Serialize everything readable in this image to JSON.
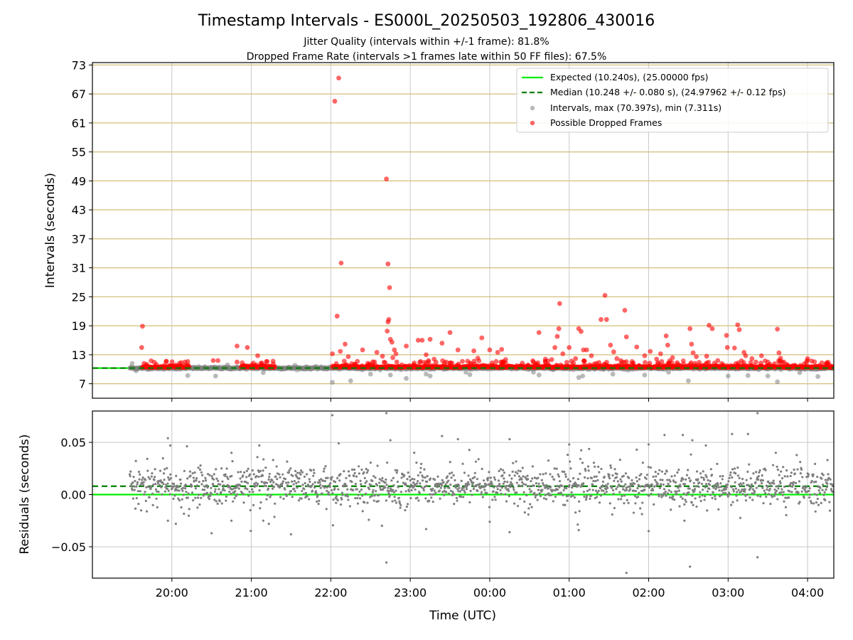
{
  "chart_data": {
    "type": "scatter",
    "title": "Timestamp Intervals - ES000L_20250503_192806_430016",
    "subtitle_lines": [
      "Jitter Quality (intervals within +/-1 frame): 81.8%",
      "Dropped Frame Rate (intervals >1 frames late within 50 FF files): 67.5%"
    ],
    "xlabel": "Time (UTC)",
    "x_ticks": [
      "20:00",
      "21:00",
      "22:00",
      "23:00",
      "00:00",
      "01:00",
      "02:00",
      "03:00",
      "04:00"
    ],
    "x_range_hours": [
      -1.0,
      8.33
    ],
    "x_data_range_hours": [
      -0.53,
      8.33
    ],
    "colors": {
      "expected": "#00ee00",
      "median": "#007f00",
      "gray_points": "#7f7f7f",
      "red_points": "#ff0000",
      "grid_main": "#d4bf7a",
      "grid_minor": "#c8c8c8"
    },
    "top": {
      "ylabel": "Intervals (seconds)",
      "y_ticks": [
        "7",
        "13",
        "19",
        "25",
        "31",
        "37",
        "43",
        "49",
        "55",
        "61",
        "67",
        "73"
      ],
      "ylim": [
        4,
        73.5
      ],
      "expected": 10.24,
      "median": 10.248,
      "legend": {
        "position": "top-right",
        "expected": "Expected (10.240s), (25.00000 fps)",
        "median": "Median (10.248 +/- 0.080 s), (24.97962 +/- 0.12 fps)",
        "intervals": "Intervals, max (70.397s), min (7.311s)",
        "dropped": "Possible Dropped Frames"
      },
      "red_clusters": [
        [
          -0.37,
          0.22
        ],
        [
          0.55,
          0.15
        ],
        [
          0.87,
          1.3
        ],
        [
          2.02,
          6.93
        ],
        [
          6.93,
          7.6
        ],
        [
          7.62,
          8.33
        ]
      ],
      "outliers_red": [
        [
          -0.37,
          18.9
        ],
        [
          -0.38,
          14.5
        ],
        [
          -0.35,
          11.2
        ],
        [
          0.2,
          11.6
        ],
        [
          0.52,
          11.8
        ],
        [
          0.58,
          11.8
        ],
        [
          0.82,
          14.8
        ],
        [
          0.82,
          11.5
        ],
        [
          0.95,
          14.5
        ],
        [
          1.08,
          12.8
        ],
        [
          1.12,
          11.2
        ],
        [
          1.2,
          11.6
        ],
        [
          2.02,
          13.2
        ],
        [
          2.05,
          65.5
        ],
        [
          2.1,
          70.3
        ],
        [
          2.08,
          21.0
        ],
        [
          2.13,
          32.0
        ],
        [
          2.18,
          15.2
        ],
        [
          2.12,
          13.7
        ],
        [
          2.22,
          12.6
        ],
        [
          2.3,
          11.0
        ],
        [
          2.4,
          14.0
        ],
        [
          2.55,
          11.5
        ],
        [
          2.58,
          13.5
        ],
        [
          2.65,
          12.7
        ],
        [
          2.7,
          49.4
        ],
        [
          2.72,
          31.8
        ],
        [
          2.74,
          26.9
        ],
        [
          2.73,
          20.3
        ],
        [
          2.72,
          19.8
        ],
        [
          2.71,
          17.9
        ],
        [
          2.75,
          16.2
        ],
        [
          2.77,
          15.6
        ],
        [
          2.8,
          14.0
        ],
        [
          2.82,
          13.2
        ],
        [
          2.78,
          12.4
        ],
        [
          2.83,
          11.5
        ],
        [
          2.95,
          14.8
        ],
        [
          3.05,
          11.3
        ],
        [
          3.1,
          16.0
        ],
        [
          3.15,
          16.0
        ],
        [
          3.2,
          13.0
        ],
        [
          3.25,
          16.2
        ],
        [
          3.3,
          12.1
        ],
        [
          3.4,
          15.4
        ],
        [
          3.5,
          17.6
        ],
        [
          3.6,
          14.0
        ],
        [
          3.75,
          11.3
        ],
        [
          3.8,
          13.8
        ],
        [
          3.85,
          12.3
        ],
        [
          3.9,
          16.5
        ],
        [
          4.0,
          14.0
        ],
        [
          4.1,
          13.5
        ],
        [
          4.15,
          14.1
        ],
        [
          4.2,
          12.0
        ],
        [
          4.55,
          11.5
        ],
        [
          4.62,
          17.6
        ],
        [
          4.7,
          12.1
        ],
        [
          4.78,
          12.0
        ],
        [
          4.82,
          14.5
        ],
        [
          4.85,
          16.8
        ],
        [
          4.87,
          18.4
        ],
        [
          4.88,
          23.6
        ],
        [
          4.92,
          13.2
        ],
        [
          5.0,
          14.5
        ],
        [
          5.08,
          12.2
        ],
        [
          5.12,
          18.4
        ],
        [
          5.15,
          17.8
        ],
        [
          5.18,
          14.0
        ],
        [
          5.22,
          14.0
        ],
        [
          5.28,
          12.8
        ],
        [
          5.4,
          20.3
        ],
        [
          5.45,
          25.3
        ],
        [
          5.47,
          20.3
        ],
        [
          5.52,
          15.0
        ],
        [
          5.56,
          13.6
        ],
        [
          5.6,
          12.2
        ],
        [
          5.65,
          11.8
        ],
        [
          5.7,
          22.2
        ],
        [
          5.72,
          16.7
        ],
        [
          5.85,
          14.6
        ],
        [
          5.95,
          12.8
        ],
        [
          6.02,
          13.7
        ],
        [
          6.1,
          12.1
        ],
        [
          6.15,
          13.2
        ],
        [
          6.22,
          16.9
        ],
        [
          6.24,
          15.0
        ],
        [
          6.3,
          12.4
        ],
        [
          6.52,
          18.4
        ],
        [
          6.54,
          15.2
        ],
        [
          6.56,
          13.4
        ],
        [
          6.6,
          12.6
        ],
        [
          6.73,
          12.7
        ],
        [
          6.76,
          19.1
        ],
        [
          6.8,
          18.4
        ],
        [
          6.87,
          11.8
        ],
        [
          6.98,
          17.0
        ],
        [
          6.99,
          14.5
        ],
        [
          7.08,
          14.4
        ],
        [
          7.12,
          19.2
        ],
        [
          7.14,
          18.2
        ],
        [
          7.2,
          13.5
        ],
        [
          7.22,
          12.8
        ],
        [
          7.3,
          12.2
        ],
        [
          7.35,
          11.5
        ],
        [
          7.42,
          12.8
        ],
        [
          7.5,
          11.5
        ],
        [
          7.62,
          18.3
        ],
        [
          7.64,
          13.4
        ],
        [
          7.66,
          12.3
        ],
        [
          7.7,
          11.5
        ],
        [
          8.0,
          12.2
        ],
        [
          8.05,
          11.7
        ],
        [
          8.15,
          10.8
        ]
      ],
      "outliers_gray": [
        [
          -0.5,
          11.2
        ],
        [
          -0.45,
          9.7
        ],
        [
          0.2,
          8.7
        ],
        [
          0.55,
          8.6
        ],
        [
          0.7,
          10.9
        ],
        [
          1.15,
          9.3
        ],
        [
          1.55,
          10.8
        ],
        [
          2.02,
          7.3
        ],
        [
          2.25,
          7.6
        ],
        [
          2.5,
          9.0
        ],
        [
          2.75,
          8.8
        ],
        [
          2.95,
          8.1
        ],
        [
          3.2,
          9.0
        ],
        [
          3.25,
          8.6
        ],
        [
          3.7,
          9.4
        ],
        [
          3.75,
          8.9
        ],
        [
          4.55,
          9.4
        ],
        [
          4.62,
          8.8
        ],
        [
          5.12,
          8.3
        ],
        [
          5.17,
          8.6
        ],
        [
          5.55,
          9.0
        ],
        [
          5.95,
          8.8
        ],
        [
          6.25,
          9.4
        ],
        [
          6.5,
          7.6
        ],
        [
          7.0,
          8.6
        ],
        [
          7.25,
          8.7
        ],
        [
          7.5,
          8.6
        ],
        [
          7.62,
          7.4
        ],
        [
          7.9,
          9.3
        ],
        [
          8.13,
          8.5
        ]
      ]
    },
    "bottom": {
      "ylabel": "Residuals (seconds)",
      "y_ticks": [
        "−0.05",
        "0.00",
        "0.05"
      ],
      "ylim": [
        -0.08,
        0.08
      ],
      "expected": 0.0,
      "median": 0.008,
      "outliers": [
        [
          -0.05,
          0.054
        ],
        [
          -0.02,
          0.047
        ],
        [
          -0.05,
          -0.025
        ],
        [
          0.05,
          -0.028
        ],
        [
          0.5,
          -0.037
        ],
        [
          0.75,
          0.04
        ],
        [
          0.75,
          -0.025
        ],
        [
          1.1,
          0.047
        ],
        [
          1.15,
          -0.025
        ],
        [
          1.22,
          -0.028
        ],
        [
          1.5,
          -0.038
        ],
        [
          2.02,
          0.076
        ],
        [
          2.7,
          0.078
        ],
        [
          2.7,
          -0.065
        ],
        [
          2.75,
          0.052
        ],
        [
          3.05,
          0.04
        ],
        [
          3.2,
          -0.033
        ],
        [
          3.4,
          0.056
        ],
        [
          3.6,
          0.053
        ],
        [
          4.0,
          -0.026
        ],
        [
          4.25,
          0.053
        ],
        [
          4.25,
          -0.036
        ],
        [
          5.0,
          0.048
        ],
        [
          5.12,
          -0.034
        ],
        [
          5.72,
          -0.075
        ],
        [
          5.85,
          0.043
        ],
        [
          6.0,
          0.048
        ],
        [
          6.0,
          -0.035
        ],
        [
          6.2,
          0.057
        ],
        [
          6.43,
          0.057
        ],
        [
          6.45,
          -0.025
        ],
        [
          6.52,
          -0.069
        ],
        [
          6.55,
          0.052
        ],
        [
          6.72,
          0.047
        ],
        [
          7.05,
          0.058
        ],
        [
          7.25,
          0.058
        ],
        [
          7.37,
          0.078
        ],
        [
          7.37,
          -0.06
        ],
        [
          7.6,
          0.04
        ],
        [
          8.25,
          0.033
        ]
      ]
    }
  }
}
